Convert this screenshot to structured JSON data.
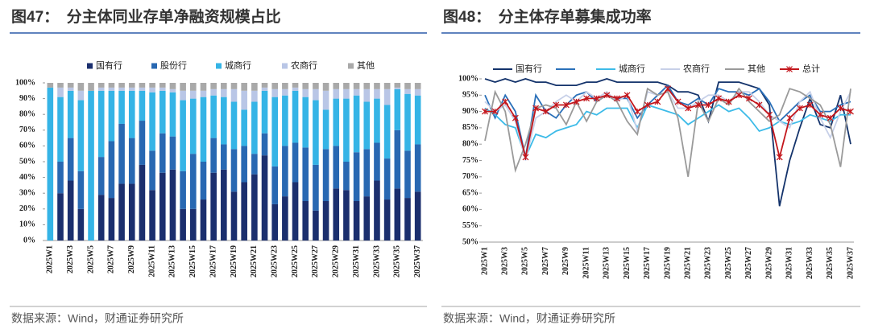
{
  "chart_data": [
    {
      "type": "bar",
      "stacked": true,
      "title": "图47：　分主体同业存单净融资规模占比",
      "source": "数据来源：Wind，财通证券研究所",
      "categories": [
        "2025W1",
        null,
        "2025W3",
        null,
        "2025W5",
        null,
        "2025W7",
        null,
        "2025W9",
        null,
        "2025W11",
        null,
        "2025W13",
        null,
        "2025W15",
        null,
        "2025W17",
        null,
        "2025W19",
        null,
        "2025W21",
        null,
        "2025W23",
        null,
        "2025W25",
        null,
        "2025W27",
        null,
        "2025W29",
        null,
        "2025W31",
        null,
        "2025W33",
        null,
        "2025W35",
        null,
        "2025W37"
      ],
      "ylim": [
        0,
        100
      ],
      "yticks": [
        {
          "value": 0,
          "label": "0%"
        },
        {
          "value": 10,
          "label": "10%"
        },
        {
          "value": 20,
          "label": "20%"
        },
        {
          "value": 30,
          "label": "30%"
        },
        {
          "value": 40,
          "label": "40%"
        },
        {
          "value": 50,
          "label": "50%"
        },
        {
          "value": 60,
          "label": "60%"
        },
        {
          "value": 70,
          "label": "70%"
        },
        {
          "value": 80,
          "label": "80%"
        },
        {
          "value": 90,
          "label": "90%"
        },
        {
          "value": 100,
          "label": "100%"
        }
      ],
      "grid": false,
      "series": [
        {
          "name": "国有行",
          "color": "#1b2f6e",
          "values": [
            0,
            30,
            38,
            20,
            0,
            29,
            27,
            36,
            36,
            48,
            32,
            43,
            45,
            20,
            20,
            26,
            43,
            45,
            31,
            37,
            42,
            54,
            23,
            28,
            37,
            25,
            19,
            25,
            33,
            32,
            25,
            28,
            38,
            26,
            33,
            27,
            31
          ]
        },
        {
          "name": "股份行",
          "color": "#2868b2",
          "values": [
            0,
            20,
            27,
            24,
            0,
            24,
            36,
            38,
            29,
            28,
            25,
            25,
            21,
            24,
            35,
            24,
            22,
            16,
            27,
            23,
            13,
            14,
            24,
            32,
            25,
            34,
            29,
            33,
            27,
            18,
            31,
            30,
            24,
            26,
            37,
            30,
            30
          ]
        },
        {
          "name": "城商行",
          "color": "#35b4e6",
          "values": [
            97,
            41,
            30,
            45,
            95,
            42,
            32,
            21,
            30,
            19,
            37,
            27,
            28,
            45,
            35,
            41,
            27,
            30,
            30,
            23,
            33,
            27,
            44,
            32,
            33,
            32,
            41,
            25,
            30,
            40,
            36,
            30,
            28,
            34,
            26,
            36,
            31
          ]
        },
        {
          "name": "农商行",
          "color": "#b9c6e6",
          "values": [
            0,
            6,
            2,
            6,
            0,
            2,
            2,
            2,
            2,
            2,
            3,
            2,
            2,
            6,
            5,
            4,
            4,
            5,
            8,
            12,
            7,
            2,
            5,
            4,
            2,
            5,
            7,
            12,
            6,
            6,
            4,
            8,
            6,
            10,
            1,
            3,
            4
          ]
        },
        {
          "name": "其他",
          "color": "#a9a9a9",
          "values": [
            3,
            3,
            3,
            5,
            5,
            3,
            3,
            3,
            3,
            3,
            3,
            3,
            4,
            5,
            5,
            5,
            4,
            4,
            4,
            5,
            5,
            3,
            4,
            4,
            3,
            4,
            4,
            5,
            4,
            4,
            4,
            4,
            4,
            4,
            3,
            4,
            4
          ]
        }
      ]
    },
    {
      "type": "line",
      "title": "图48：　分主体存单募集成功率",
      "source": "数据来源：Wind，财通证券研究所",
      "categories": [
        "2025W1",
        null,
        "2025W3",
        null,
        "2025W5",
        null,
        "2025W7",
        null,
        "2025W9",
        null,
        "2025W11",
        null,
        "2025W13",
        null,
        "2025W15",
        null,
        "2025W17",
        null,
        "2025W19",
        null,
        "2025W21",
        null,
        "2025W23",
        null,
        "2025W25",
        null,
        "2025W27",
        null,
        "2025W29",
        null,
        "2025W31",
        null,
        "2025W33",
        null,
        "2025W35",
        null,
        "2025W37"
      ],
      "ylim": [
        50,
        100
      ],
      "yticks": [
        {
          "value": 50,
          "label": "50%"
        },
        {
          "value": 55,
          "label": "55%"
        },
        {
          "value": 60,
          "label": "60%"
        },
        {
          "value": 65,
          "label": "65%"
        },
        {
          "value": 70,
          "label": "70%"
        },
        {
          "value": 75,
          "label": "75%"
        },
        {
          "value": 80,
          "label": "80%"
        },
        {
          "value": 85,
          "label": "85%"
        },
        {
          "value": 90,
          "label": "90%"
        },
        {
          "value": 95,
          "label": "95%"
        },
        {
          "value": 100,
          "label": "100%"
        }
      ],
      "grid": false,
      "series": [
        {
          "name": "国有行",
          "color": "#14336b",
          "values": [
            100,
            99,
            100,
            99,
            100,
            99,
            99,
            98,
            98,
            98,
            99,
            99,
            100,
            99,
            99,
            99,
            99,
            99,
            98,
            96,
            96,
            95,
            87,
            99,
            99,
            99,
            98,
            97,
            92,
            61,
            75,
            85,
            94,
            86,
            85,
            95,
            80
          ]
        },
        {
          "name": null,
          "color": "#2a70b9",
          "values": [
            95,
            88,
            95,
            90,
            76,
            95,
            90,
            88,
            92,
            95,
            96,
            93,
            95,
            94,
            94,
            88,
            92,
            95,
            98,
            93,
            92,
            94,
            92,
            97,
            96,
            96,
            95,
            97,
            93,
            87,
            90,
            93,
            95,
            90,
            90,
            92,
            93
          ]
        },
        {
          "name": "城商行",
          "color": "#3dbbe8",
          "values": [
            91,
            89,
            86,
            85,
            76,
            83,
            82,
            84,
            85,
            86,
            90,
            89,
            91,
            91,
            91,
            85,
            92,
            91,
            90,
            89,
            86,
            88,
            90,
            92,
            90,
            91,
            88,
            84,
            85,
            87,
            86,
            87,
            89,
            88,
            87,
            89,
            89
          ]
        },
        {
          "name": "农商行",
          "color": "#c7d0e8",
          "values": [
            93,
            90,
            92,
            87,
            75,
            88,
            90,
            93,
            95,
            93,
            96,
            94,
            96,
            93,
            95,
            84,
            96,
            95,
            96,
            91,
            91,
            93,
            95,
            95,
            93,
            96,
            96,
            93,
            89,
            87,
            85,
            93,
            96,
            88,
            82,
            90,
            96
          ]
        },
        {
          "name": "其他",
          "color": "#9a9a9a",
          "values": [
            81,
            96,
            90,
            72,
            80,
            91,
            92,
            91,
            86,
            93,
            87,
            93,
            95,
            93,
            87,
            83,
            97,
            95,
            96,
            88,
            70,
            93,
            87,
            94,
            92,
            97,
            93,
            90,
            87,
            89,
            97,
            96,
            94,
            92,
            86,
            73,
            97
          ]
        },
        {
          "name": "总计",
          "color": "#c3161c",
          "marker": "asterisk",
          "values": [
            90,
            90,
            93,
            88,
            76,
            91,
            90,
            92,
            92,
            93,
            94,
            94,
            95,
            94,
            95,
            90,
            92,
            93,
            97,
            93,
            91,
            92,
            92,
            94,
            93,
            95,
            94,
            92,
            89,
            76,
            88,
            91,
            92,
            89,
            88,
            91,
            90
          ]
        }
      ]
    }
  ]
}
